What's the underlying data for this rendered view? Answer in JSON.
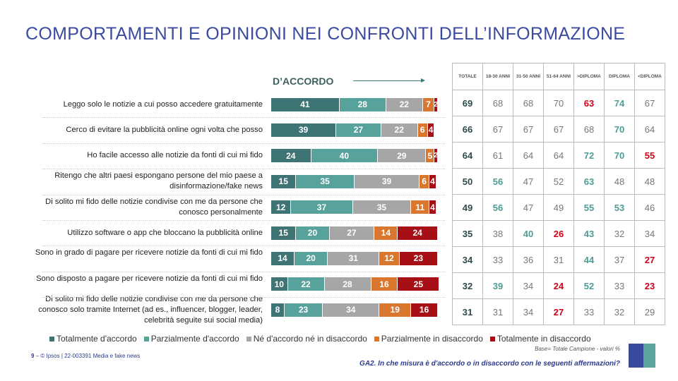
{
  "header": {
    "title": "COMPORTAMENTI E OPINIONI NEI CONFRONTI DELL’INFORMAZIONE"
  },
  "chart_data": {
    "type": "bar",
    "orientation": "horizontal",
    "stacked": true,
    "annotation": "D’ACCORDO",
    "categories": [
      "Leggo solo le notizie a cui posso accedere gratuitamente",
      "Cerco di evitare la pubblicità online ogni volta che posso",
      "Ho facile accesso alle notizie da fonti di cui mi fido",
      "Ritengo che altri paesi espongano persone del mio paese a disinformazione/fake news",
      "Di solito mi fido delle notizie condivise con me da persone che conosco personalmente",
      "Utilizzo software o app che bloccano la pubblicità online",
      "Sono in grado di pagare per ricevere notizie da fonti di cui mi fido",
      "Sono disposto a pagare per ricevere notizie da fonti di cui mi fido",
      "Di solito mi fido delle notizie condivise con me da persone che conosco solo tramite Internet (ad es., influencer, blogger, leader, celebrità seguite sui social media)"
    ],
    "series": [
      {
        "name": "Totalmente d'accordo",
        "color": "#3f7474",
        "values": [
          41,
          39,
          24,
          15,
          12,
          15,
          14,
          10,
          8
        ]
      },
      {
        "name": "Parzialmente d'accordo",
        "color": "#58a29c",
        "values": [
          28,
          27,
          40,
          35,
          37,
          20,
          20,
          22,
          23
        ]
      },
      {
        "name": "Né d'accordo né in disaccordo",
        "color": "#a6a6a6",
        "values": [
          22,
          22,
          29,
          39,
          35,
          27,
          31,
          28,
          34
        ]
      },
      {
        "name": "Parzialmente in disaccordo",
        "color": "#d9772e",
        "values": [
          7,
          6,
          5,
          6,
          11,
          14,
          12,
          16,
          19
        ]
      },
      {
        "name": "Totalmente in disaccordo",
        "color": "#a50f15",
        "values": [
          2,
          4,
          2,
          4,
          4,
          24,
          23,
          25,
          16
        ]
      }
    ],
    "legend": "bottom"
  },
  "table": {
    "headers": [
      "TOTALE",
      "18-30 ANNI",
      "31-50 ANNI",
      "51-64 ANNI",
      ">DIPLOMA",
      "DIPLOMA",
      "<DIPLOMA"
    ],
    "rows": [
      [
        [
          "69",
          "tot"
        ],
        [
          "68",
          ""
        ],
        [
          "68",
          ""
        ],
        [
          "70",
          ""
        ],
        [
          "63",
          "lo"
        ],
        [
          "74",
          "hi"
        ],
        [
          "67",
          ""
        ]
      ],
      [
        [
          "66",
          "tot"
        ],
        [
          "67",
          ""
        ],
        [
          "67",
          ""
        ],
        [
          "67",
          ""
        ],
        [
          "68",
          ""
        ],
        [
          "70",
          "hi"
        ],
        [
          "64",
          ""
        ]
      ],
      [
        [
          "64",
          "tot"
        ],
        [
          "61",
          ""
        ],
        [
          "64",
          ""
        ],
        [
          "64",
          ""
        ],
        [
          "72",
          "hi"
        ],
        [
          "70",
          "hi"
        ],
        [
          "55",
          "lo"
        ]
      ],
      [
        [
          "50",
          "tot"
        ],
        [
          "56",
          "hi"
        ],
        [
          "47",
          ""
        ],
        [
          "52",
          ""
        ],
        [
          "63",
          "hi"
        ],
        [
          "48",
          ""
        ],
        [
          "48",
          ""
        ]
      ],
      [
        [
          "49",
          "tot"
        ],
        [
          "56",
          "hi"
        ],
        [
          "47",
          ""
        ],
        [
          "49",
          ""
        ],
        [
          "55",
          "hi"
        ],
        [
          "53",
          "hi"
        ],
        [
          "46",
          ""
        ]
      ],
      [
        [
          "35",
          "tot"
        ],
        [
          "38",
          ""
        ],
        [
          "40",
          "hi"
        ],
        [
          "26",
          "lo"
        ],
        [
          "43",
          "hi"
        ],
        [
          "32",
          ""
        ],
        [
          "34",
          ""
        ]
      ],
      [
        [
          "34",
          "tot"
        ],
        [
          "33",
          ""
        ],
        [
          "36",
          ""
        ],
        [
          "31",
          ""
        ],
        [
          "44",
          "hi"
        ],
        [
          "37",
          ""
        ],
        [
          "27",
          "lo"
        ]
      ],
      [
        [
          "32",
          "tot"
        ],
        [
          "39",
          "hi"
        ],
        [
          "34",
          ""
        ],
        [
          "24",
          "lo"
        ],
        [
          "52",
          "hi"
        ],
        [
          "33",
          ""
        ],
        [
          "23",
          "lo"
        ]
      ],
      [
        [
          "31",
          "tot"
        ],
        [
          "31",
          ""
        ],
        [
          "34",
          ""
        ],
        [
          "27",
          "lo"
        ],
        [
          "33",
          ""
        ],
        [
          "32",
          ""
        ],
        [
          "29",
          ""
        ]
      ]
    ]
  },
  "footer": {
    "page": "9",
    "copyright": "– © Ipsos | 22-003391 Media e fake news",
    "base": "Base= Totale Campione - valori %",
    "question": "GA2. In che misura è d'accordo o in disaccordo con le seguenti affermazioni?",
    "logo": "Ipsos"
  }
}
